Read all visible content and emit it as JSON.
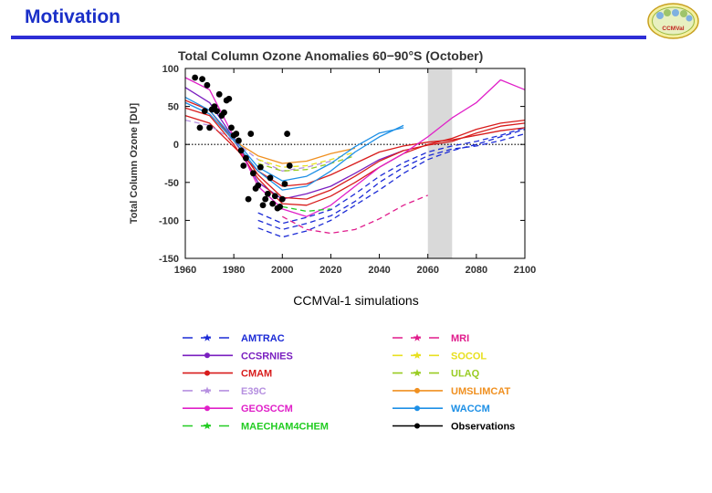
{
  "slide": {
    "title": "Motivation",
    "caption": "CCMVal-1 simulations",
    "logo_text": "CCMVal"
  },
  "colors": {
    "title": "#1a2fc8",
    "rule": "#2e2ed6",
    "shade": "#d9d9d9"
  },
  "chart_data": {
    "type": "line",
    "title": "Total Column Ozone Anomalies 60−90°S (October)",
    "xlabel": "",
    "ylabel": "Total Column Ozone [DU]",
    "xlim": [
      1960,
      2100
    ],
    "ylim": [
      -150,
      100
    ],
    "xticks": [
      1960,
      1980,
      2000,
      2020,
      2040,
      2060,
      2080,
      2100
    ],
    "yticks": [
      100,
      50,
      0,
      -50,
      -100,
      -150
    ],
    "shaded_years": [
      2060,
      2070
    ],
    "zero_line": true,
    "series": [
      {
        "name": "AMTRAC",
        "color": "#1c2bd6",
        "dash": true,
        "marker": "star",
        "group": "AMTRAC",
        "x": [
          1990,
          2000,
          2010,
          2020,
          2030,
          2040,
          2050,
          2060,
          2070,
          2080,
          2090,
          2100
        ],
        "y": [
          -100,
          -112,
          -104,
          -94,
          -75,
          -50,
          -30,
          -15,
          -6,
          -2,
          5,
          14
        ]
      },
      {
        "name": "AMTRAC",
        "color": "#1c2bd6",
        "dash": true,
        "marker": "star",
        "group": "AMTRAC",
        "x": [
          1990,
          2000,
          2010,
          2020,
          2030,
          2040,
          2050,
          2060,
          2070,
          2080,
          2090,
          2100
        ],
        "y": [
          -110,
          -122,
          -114,
          -100,
          -80,
          -60,
          -38,
          -20,
          -8,
          0,
          10,
          20
        ]
      },
      {
        "name": "AMTRAC",
        "color": "#1c2bd6",
        "dash": true,
        "marker": "star",
        "group": "AMTRAC",
        "x": [
          1990,
          2000,
          2010,
          2020,
          2030,
          2040,
          2050,
          2060,
          2070,
          2080,
          2090,
          2100
        ],
        "y": [
          -90,
          -104,
          -96,
          -86,
          -65,
          -42,
          -24,
          -10,
          -2,
          4,
          12,
          22
        ]
      },
      {
        "name": "CCSRNIES",
        "color": "#7a1fc0",
        "dash": false,
        "marker": "dot",
        "group": "CCSRNIES",
        "x": [
          1960,
          1970,
          1980,
          1990,
          2000,
          2010,
          2020,
          2030,
          2040,
          2050
        ],
        "y": [
          75,
          55,
          8,
          -50,
          -72,
          -65,
          -55,
          -38,
          -20,
          -8
        ]
      },
      {
        "name": "CMAM",
        "color": "#d81c1c",
        "dash": false,
        "marker": "dot",
        "group": "CMAM",
        "x": [
          1960,
          1970,
          1980,
          1990,
          2000,
          2010,
          2020,
          2030,
          2040,
          2050,
          2060,
          2070,
          2080,
          2090,
          2100
        ],
        "y": [
          58,
          45,
          5,
          -40,
          -70,
          -72,
          -60,
          -42,
          -22,
          -8,
          -1,
          4,
          15,
          24,
          28
        ]
      },
      {
        "name": "CMAM",
        "color": "#d81c1c",
        "dash": false,
        "marker": "dot",
        "group": "CMAM",
        "x": [
          1960,
          1970,
          1980,
          1990,
          2000,
          2010,
          2020,
          2030,
          2040,
          2050,
          2060,
          2070,
          2080,
          2090,
          2100
        ],
        "y": [
          48,
          38,
          0,
          -45,
          -78,
          -80,
          -68,
          -50,
          -30,
          -12,
          0,
          8,
          20,
          28,
          32
        ]
      },
      {
        "name": "CMAM",
        "color": "#d81c1c",
        "dash": false,
        "marker": "dot",
        "group": "CMAM",
        "x": [
          1960,
          1970,
          1980,
          1990,
          2000,
          2010,
          2020,
          2030,
          2040,
          2050,
          2060,
          2070,
          2080,
          2090,
          2100
        ],
        "y": [
          38,
          28,
          -3,
          -35,
          -55,
          -52,
          -40,
          -25,
          -10,
          -2,
          3,
          6,
          12,
          18,
          22
        ]
      },
      {
        "name": "E39C",
        "color": "#b690e0",
        "dash": true,
        "marker": "star",
        "group": "E39C",
        "x": [
          1960,
          1970,
          1980,
          1990,
          2000,
          2010,
          2020
        ],
        "y": [
          32,
          25,
          5,
          -20,
          -35,
          -30,
          -22
        ]
      },
      {
        "name": "GEOSCCM",
        "color": "#e020c8",
        "dash": false,
        "marker": "dot",
        "group": "GEOSCCM",
        "x": [
          1960,
          1970,
          1980,
          1990,
          2000,
          2010,
          2020,
          2030,
          2040,
          2050,
          2060,
          2070,
          2080,
          2090,
          2100
        ],
        "y": [
          88,
          72,
          10,
          -55,
          -85,
          -95,
          -80,
          -55,
          -30,
          -12,
          10,
          35,
          55,
          85,
          72
        ]
      },
      {
        "name": "MAECHAM4CHEM",
        "color": "#22cc22",
        "dash": true,
        "marker": "star",
        "group": "MAECHAM4CHEM",
        "x": [
          2000,
          2010,
          2020
        ],
        "y": [
          -82,
          -88,
          -85
        ]
      },
      {
        "name": "MRI",
        "color": "#e01c8c",
        "dash": true,
        "marker": "star",
        "group": "MRI",
        "x": [
          2000,
          2010,
          2020,
          2030,
          2040,
          2050,
          2060
        ],
        "y": [
          -95,
          -112,
          -117,
          -112,
          -98,
          -80,
          -67
        ]
      },
      {
        "name": "SOCOL",
        "color": "#e8e020",
        "dash": true,
        "marker": "star",
        "group": "SOCOL",
        "x": [
          1990,
          2000,
          2010,
          2020,
          2030
        ],
        "y": [
          -20,
          -30,
          -28,
          -20,
          -10
        ]
      },
      {
        "name": "ULAQ",
        "color": "#99cc22",
        "dash": true,
        "marker": "star",
        "group": "ULAQ",
        "x": [
          1990,
          2000,
          2010,
          2020,
          2030
        ],
        "y": [
          -25,
          -35,
          -33,
          -25,
          -15
        ]
      },
      {
        "name": "UMSLIMCAT",
        "color": "#f09020",
        "dash": false,
        "marker": "dot",
        "group": "UMSLIMCAT",
        "x": [
          1970,
          1980,
          1990,
          2000,
          2010,
          2020,
          2030
        ],
        "y": [
          40,
          5,
          -15,
          -25,
          -22,
          -12,
          -5
        ]
      },
      {
        "name": "WACCM",
        "color": "#1e90e6",
        "dash": false,
        "marker": "dot",
        "group": "WACCM",
        "x": [
          1960,
          1970,
          1980,
          1990,
          2000,
          2010,
          2020,
          2030,
          2040,
          2050
        ],
        "y": [
          55,
          40,
          5,
          -35,
          -60,
          -55,
          -35,
          -10,
          10,
          25
        ]
      },
      {
        "name": "WACCM",
        "color": "#1e90e6",
        "dash": false,
        "marker": "dot",
        "group": "WACCM",
        "x": [
          1960,
          1970,
          1980,
          1990,
          2000,
          2010,
          2020,
          2030,
          2040,
          2050
        ],
        "y": [
          62,
          45,
          8,
          -30,
          -48,
          -42,
          -25,
          -3,
          15,
          22
        ]
      }
    ],
    "observations": {
      "name": "Observations",
      "color": "#000000",
      "x": [
        1964,
        1966,
        1967,
        1968,
        1969,
        1970,
        1971,
        1972,
        1973,
        1974,
        1975,
        1976,
        1977,
        1978,
        1979,
        1980,
        1981,
        1982,
        1983,
        1984,
        1985,
        1986,
        1987,
        1988,
        1989,
        1990,
        1991,
        1992,
        1993,
        1994,
        1995,
        1996,
        1997,
        1998,
        1999,
        2000,
        2001,
        2002,
        2003
      ],
      "y": [
        88,
        22,
        86,
        44,
        78,
        22,
        46,
        50,
        44,
        66,
        38,
        42,
        58,
        60,
        22,
        12,
        14,
        5,
        -8,
        -28,
        -18,
        -72,
        14,
        -38,
        -58,
        -54,
        -30,
        -80,
        -72,
        -65,
        -44,
        -78,
        -68,
        -84,
        -82,
        -72,
        -52,
        14,
        -28
      ]
    },
    "legend": [
      {
        "label": "AMTRAC",
        "color": "#1c2bd6",
        "dash": true,
        "marker": "star"
      },
      {
        "label": "CCSRNIES",
        "color": "#7a1fc0",
        "dash": false,
        "marker": "dot"
      },
      {
        "label": "CMAM",
        "color": "#d81c1c",
        "dash": false,
        "marker": "dot"
      },
      {
        "label": "E39C",
        "color": "#b690e0",
        "dash": true,
        "marker": "star"
      },
      {
        "label": "GEOSCCM",
        "color": "#e020c8",
        "dash": false,
        "marker": "dot"
      },
      {
        "label": "MAECHAM4CHEM",
        "color": "#22cc22",
        "dash": true,
        "marker": "star"
      },
      {
        "label": "MRI",
        "color": "#e01c8c",
        "dash": true,
        "marker": "star"
      },
      {
        "label": "SOCOL",
        "color": "#e8e020",
        "dash": true,
        "marker": "star"
      },
      {
        "label": "ULAQ",
        "color": "#99cc22",
        "dash": true,
        "marker": "star"
      },
      {
        "label": "UMSLIMCAT",
        "color": "#f09020",
        "dash": false,
        "marker": "dot"
      },
      {
        "label": "WACCM",
        "color": "#1e90e6",
        "dash": false,
        "marker": "dot"
      },
      {
        "label": "Observations",
        "color": "#000000",
        "dash": false,
        "marker": "dot"
      }
    ]
  }
}
